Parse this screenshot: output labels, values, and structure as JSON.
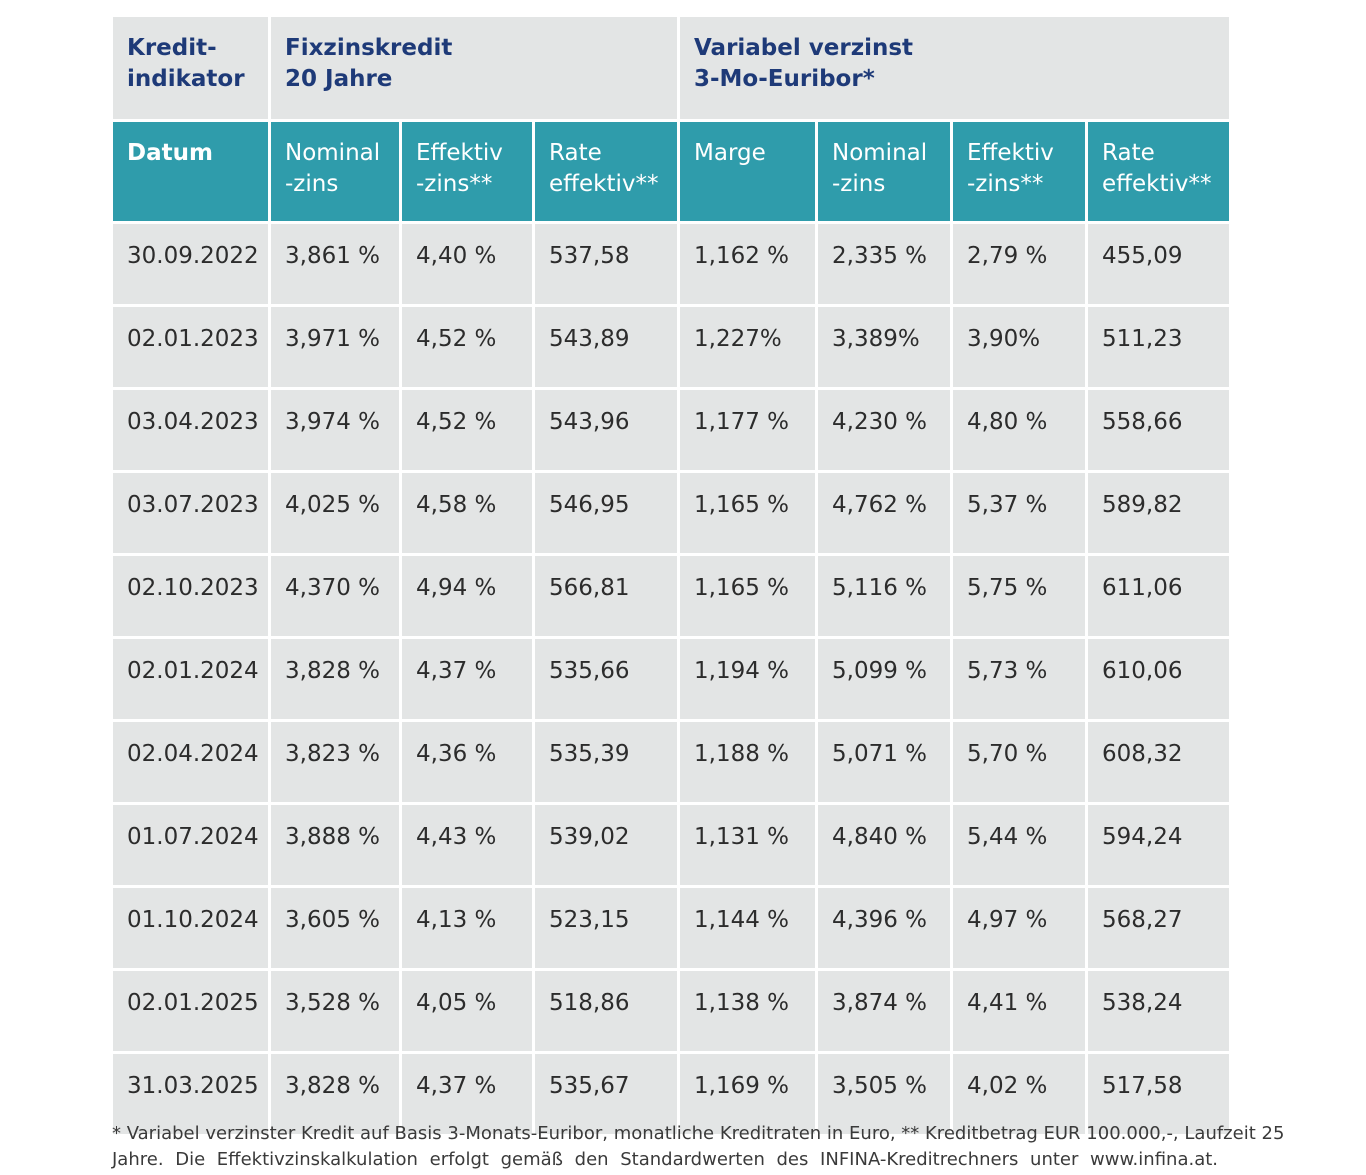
{
  "header_top": {
    "kredit_line1": "Kredit-",
    "kredit_line2": "indikator",
    "fix_line1": "Fixzinskredit",
    "fix_line2": "20 Jahre",
    "var_line1": "Variabel verzinst",
    "var_line2": "3-Mo-Euribor*"
  },
  "header_cols": [
    {
      "l1": "Datum",
      "l2": ""
    },
    {
      "l1": "Nominal",
      "l2": "-zins"
    },
    {
      "l1": "Effektiv",
      "l2": "-zins**"
    },
    {
      "l1": "Rate",
      "l2": "effektiv**"
    },
    {
      "l1": "Marge",
      "l2": ""
    },
    {
      "l1": "Nominal",
      "l2": "-zins"
    },
    {
      "l1": "Effektiv",
      "l2": "-zins**"
    },
    {
      "l1": "Rate",
      "l2": "effektiv**"
    }
  ],
  "rows": [
    [
      "30.09.2022",
      "3,861 %",
      "4,40 %",
      "537,58",
      "1,162 %",
      "2,335 %",
      "2,79 %",
      "455,09"
    ],
    [
      "02.01.2023",
      "3,971 %",
      "4,52 %",
      "543,89",
      "1,227%",
      "3,389%",
      "3,90%",
      "511,23"
    ],
    [
      "03.04.2023",
      "3,974 %",
      "4,52 %",
      "543,96",
      "1,177 %",
      "4,230 %",
      "4,80 %",
      "558,66"
    ],
    [
      "03.07.2023",
      "4,025 %",
      "4,58 %",
      "546,95",
      "1,165 %",
      "4,762 %",
      "5,37 %",
      "589,82"
    ],
    [
      "02.10.2023",
      "4,370 %",
      "4,94 %",
      "566,81",
      "1,165 %",
      "5,116 %",
      "5,75 %",
      "611,06"
    ],
    [
      "02.01.2024",
      "3,828 %",
      "4,37 %",
      "535,66",
      "1,194 %",
      "5,099 %",
      "5,73 %",
      "610,06"
    ],
    [
      "02.04.2024",
      "3,823 %",
      "4,36 %",
      "535,39",
      "1,188 %",
      "5,071 %",
      "5,70 %",
      "608,32"
    ],
    [
      "01.07.2024",
      "3,888 %",
      "4,43 %",
      "539,02",
      "1,131 %",
      "4,840 %",
      "5,44 %",
      "594,24"
    ],
    [
      "01.10.2024",
      "3,605 %",
      "4,13 %",
      "523,15",
      "1,144 %",
      "4,396 %",
      "4,97 %",
      "568,27"
    ],
    [
      "02.01.2025",
      "3,528 %",
      "4,05 %",
      "518,86",
      "1,138 %",
      "3,874 %",
      "4,41 %",
      "538,24"
    ],
    [
      "31.03.2025",
      "3,828 %",
      "4,37 %",
      "535,67",
      "1,169 %",
      "3,505 %",
      "4,02 %",
      "517,58"
    ]
  ],
  "footnote": {
    "line1": "* Variabel verzinster Kredit auf Basis 3-Monats-Euribor, monatliche Kreditraten in Euro, ** Kreditbetrag EUR 100.000,-, Laufzeit 25",
    "line2": "Jahre. Die Effektivzinskalkulation erfolgt gemäß den Standardwerten des INFINA-Kreditrechners unter www.infina.at."
  },
  "colors": {
    "header_teal": "#2f9cab",
    "header_text_navy": "#1e3a78",
    "cell_gray": "#e3e5e5"
  }
}
